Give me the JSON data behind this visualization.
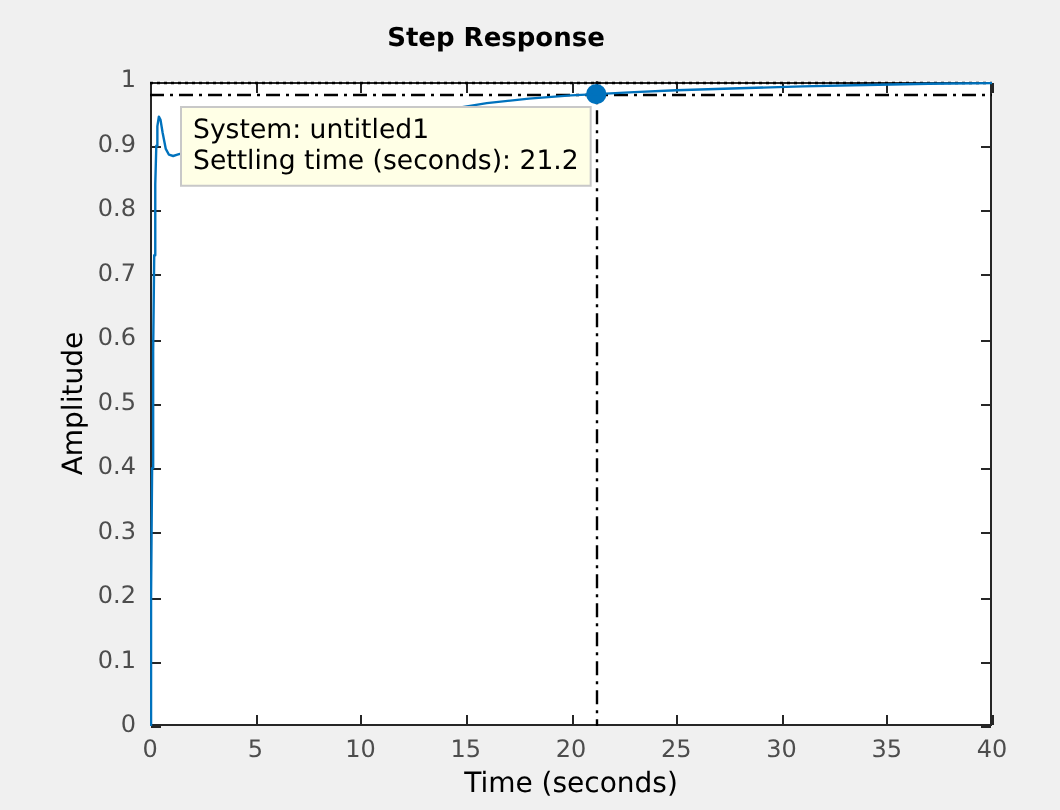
{
  "chart_data": {
    "type": "line",
    "title": "Step Response",
    "xlabel": "Time (seconds)",
    "ylabel": "Amplitude",
    "series": [
      {
        "color": "#0072bd",
        "marker": "none",
        "x": [
          0,
          0.05,
          0.1,
          0.15,
          0.2,
          0.25,
          0.3,
          0.35,
          0.42,
          0.5,
          0.6,
          0.75,
          0.9,
          1.1,
          1.3,
          1.6,
          16,
          18,
          20,
          21.2,
          23,
          25,
          28,
          31,
          34,
          37,
          40
        ],
        "values": [
          0,
          0.2,
          0.4,
          0.58,
          0.73,
          0.84,
          0.9,
          0.93,
          0.945,
          0.94,
          0.92,
          0.895,
          0.886,
          0.884,
          0.886,
          0.889,
          0.966,
          0.973,
          0.978,
          0.98,
          0.983,
          0.986,
          0.989,
          0.992,
          0.994,
          0.996,
          0.997
        ]
      },
      {
        "type": "scatter",
        "color": "#0072bd",
        "marker": "circle",
        "x": [
          21.2
        ],
        "values": [
          0.98
        ]
      }
    ],
    "xlim": [
      0,
      40
    ],
    "xticks": [
      0,
      5,
      10,
      15,
      20,
      25,
      30,
      35,
      40
    ],
    "ylim": [
      0,
      1
    ],
    "yticks": [
      0,
      0.1,
      0.2,
      0.3,
      0.4,
      0.5,
      0.6,
      0.7,
      0.8,
      0.9,
      1
    ],
    "ref_lines": [
      {
        "axis": "y",
        "value": 0.98,
        "color": "#000000",
        "line_style": "dashed"
      },
      {
        "axis": "y",
        "value": 1,
        "color": "#000000",
        "line_style": "dotted"
      },
      {
        "axis": "x",
        "value": 21.2,
        "color": "#000000",
        "line_style": "dashed"
      }
    ],
    "annotations": [
      {
        "text": "System: untitled1\nSettling time (seconds): 21.2",
        "x": 21.2,
        "y": 0.98
      }
    ],
    "grid": false,
    "legend": false
  }
}
